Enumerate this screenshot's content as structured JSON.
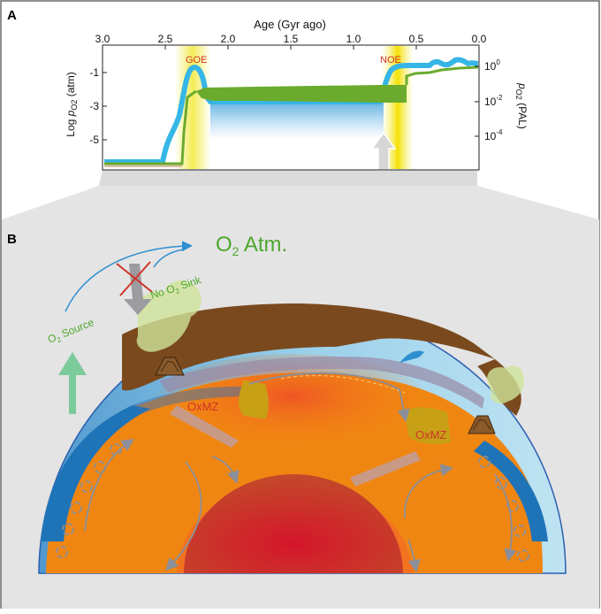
{
  "panel_a": {
    "label": "A",
    "x_axis_title": "Age (Gyr ago)",
    "x_ticks": [
      "3.0",
      "2.5",
      "2.0",
      "1.5",
      "1.0",
      "0.5",
      "0.0"
    ],
    "y_left_label_prefix": "Log ",
    "y_left_label_p": "p",
    "y_left_label_sub": "O2",
    "y_left_label_suffix": " (atm)",
    "y_left_ticks": [
      "-1",
      "-3",
      "-5"
    ],
    "y_right_label_p": "p",
    "y_right_label_sub": "O2",
    "y_right_label_suffix": " (PAL)",
    "y_right_ticks": [
      {
        "base": "10",
        "exp": "0"
      },
      {
        "base": "10",
        "exp": "-2"
      },
      {
        "base": "10",
        "exp": "-4"
      }
    ],
    "goe_label": "GOE",
    "noe_label": "NOE",
    "colors": {
      "blue_curve": "#36b6e6",
      "green_curve": "#6aab2e",
      "event_band": "#f4ec58",
      "event_text": "#d1342a"
    }
  },
  "panel_b": {
    "label": "B",
    "o2_atm_main": "O",
    "o2_atm_sub": "2",
    "o2_atm_suffix": " Atm.",
    "o2_source_main": "O",
    "o2_source_sub": "2",
    "o2_source_suffix": " Source",
    "no_sink_prefix": "No O",
    "no_sink_sub": "2",
    "no_sink_suffix": " Sink",
    "oxmz_left": "OxMZ",
    "oxmz_right": "OxMZ",
    "colors": {
      "mantle": "#f08612",
      "core": "#cc1f2c",
      "crust": "#7a4a1e",
      "ocean": "#8fcbe6",
      "slab": "#1f74b8",
      "green_label": "#4ea72e",
      "red_label": "#d1342a",
      "background": "#e4e4e4"
    }
  }
}
